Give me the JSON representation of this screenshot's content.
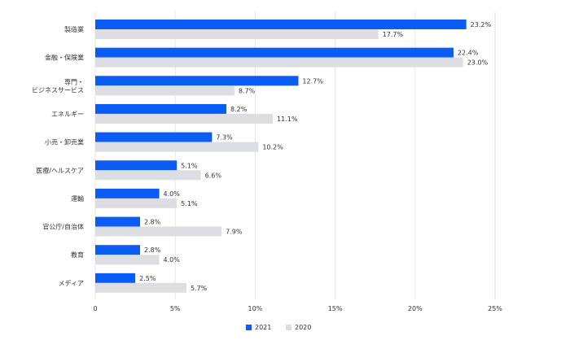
{
  "chart_data": {
    "type": "bar",
    "orientation": "horizontal",
    "categories": [
      "製造業",
      "金融・保険業",
      "専門・\nビジネスサービス",
      "エネルギー",
      "小売・卸売業",
      "医療/ヘルスケア",
      "運輸",
      "官公庁/自治体",
      "教育",
      "メディア"
    ],
    "series": [
      {
        "name": "2021",
        "color": "#0b5cf5",
        "values": [
          23.2,
          22.4,
          12.7,
          8.2,
          7.3,
          5.1,
          4.0,
          2.8,
          2.8,
          2.5
        ],
        "labels": [
          "23.2%",
          "22.4%",
          "12.7%",
          "8.2%",
          "7.3%",
          "5.1%",
          "4.0%",
          "2.8%",
          "2.8%",
          "2.5%"
        ]
      },
      {
        "name": "2020",
        "color": "#dcdee3",
        "values": [
          17.7,
          23.0,
          8.7,
          11.1,
          10.2,
          6.6,
          5.1,
          7.9,
          4.0,
          5.7
        ],
        "labels": [
          "17.7%",
          "23.0%",
          "8.7%",
          "11.1%",
          "10.2%",
          "6.6%",
          "5.1%",
          "7.9%",
          "4.0%",
          "5.7%"
        ]
      }
    ],
    "x_ticks": [
      0,
      5,
      10,
      15,
      20,
      25
    ],
    "x_tick_labels": [
      "0",
      "5%",
      "10%",
      "15%",
      "20%",
      "25%"
    ],
    "xlim": [
      0,
      25
    ],
    "grid": true,
    "legend_position": "bottom"
  }
}
